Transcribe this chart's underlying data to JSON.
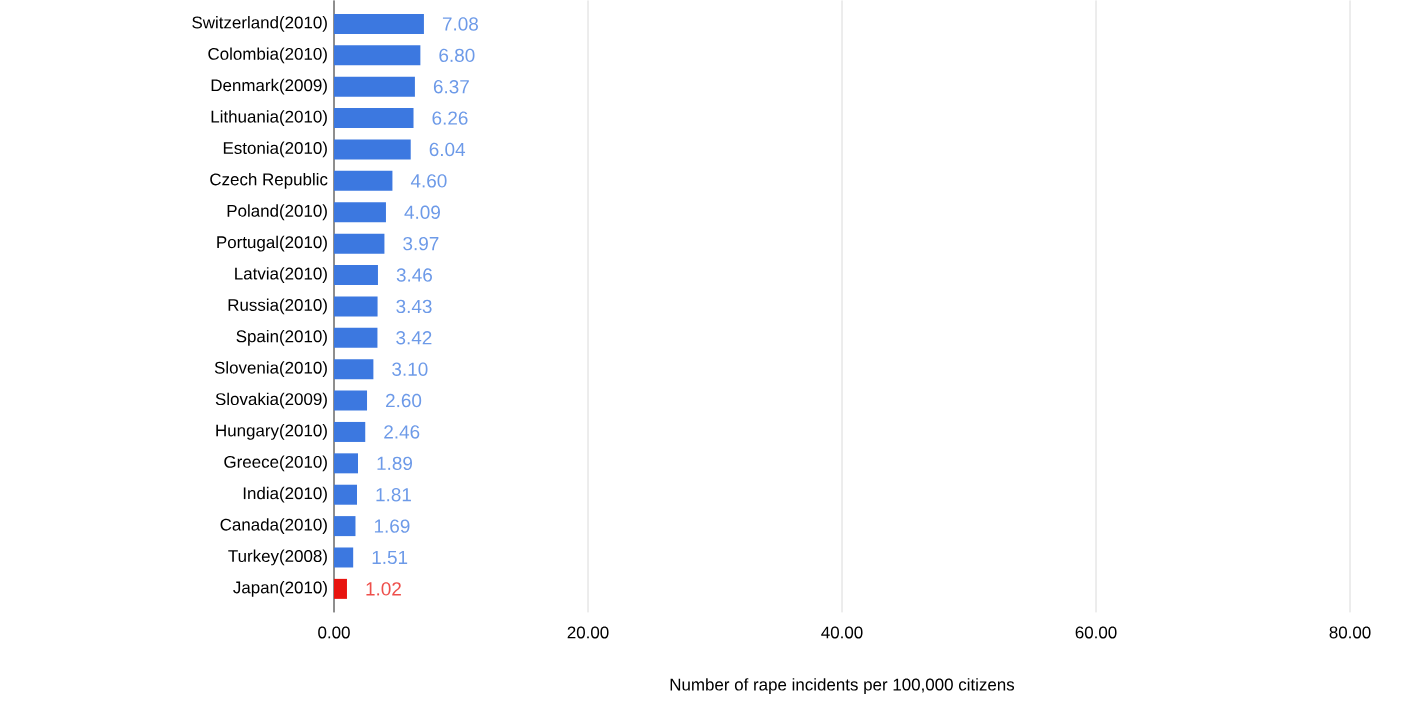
{
  "chart_data": {
    "type": "bar",
    "orientation": "horizontal",
    "xlabel": "Number of rape incidents per 100,000 citizens",
    "categories": [
      "Switzerland(2010)",
      "Colombia(2010)",
      "Denmark(2009)",
      "Lithuania(2010)",
      "Estonia(2010)",
      "Czech Republic",
      "Poland(2010)",
      "Portugal(2010)",
      "Latvia(2010)",
      "Russia(2010)",
      "Spain(2010)",
      "Slovenia(2010)",
      "Slovakia(2009)",
      "Hungary(2010)",
      "Greece(2010)",
      "India(2010)",
      "Canada(2010)",
      "Turkey(2008)",
      "Japan(2010)"
    ],
    "values": [
      7.08,
      6.8,
      6.37,
      6.26,
      6.04,
      4.6,
      4.09,
      3.97,
      3.46,
      3.43,
      3.42,
      3.1,
      2.6,
      2.46,
      1.89,
      1.81,
      1.69,
      1.51,
      1.02
    ],
    "value_labels": [
      "7.08",
      "6.80",
      "6.37",
      "6.26",
      "6.04",
      "4.60",
      "4.09",
      "3.97",
      "3.46",
      "3.43",
      "3.42",
      "3.10",
      "2.60",
      "2.46",
      "1.89",
      "1.81",
      "1.69",
      "1.51",
      "1.02"
    ],
    "colors": [
      "#3c78e0",
      "#3c78e0",
      "#3c78e0",
      "#3c78e0",
      "#3c78e0",
      "#3c78e0",
      "#3c78e0",
      "#3c78e0",
      "#3c78e0",
      "#3c78e0",
      "#3c78e0",
      "#3c78e0",
      "#3c78e0",
      "#3c78e0",
      "#3c78e0",
      "#3c78e0",
      "#3c78e0",
      "#3c78e0",
      "#e8140f"
    ],
    "xlim": [
      0,
      80
    ],
    "xticks": [
      {
        "value": 0,
        "label": "0.00"
      },
      {
        "value": 20,
        "label": "20.00"
      },
      {
        "value": 40,
        "label": "40.00"
      },
      {
        "value": 60,
        "label": "60.00"
      },
      {
        "value": 80,
        "label": "80.00"
      }
    ],
    "grid": "x"
  }
}
